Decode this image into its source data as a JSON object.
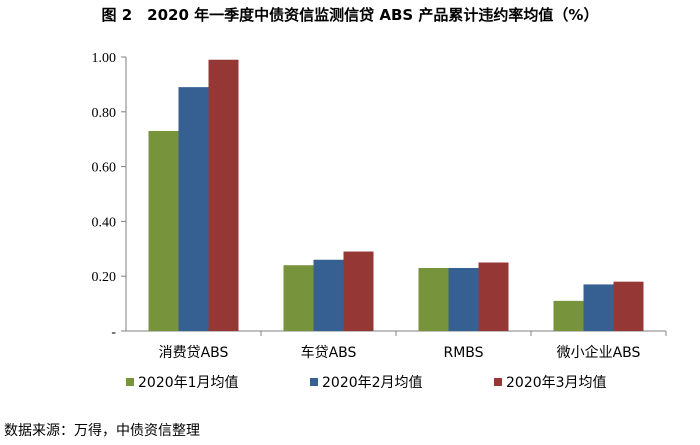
{
  "title": "图 2　2020 年一季度中债资信监测信贷 ABS 产品累计违约率均值（%）",
  "source": "数据来源：万得，中债资信整理",
  "chart_data": {
    "type": "bar",
    "categories": [
      "消费贷ABS",
      "车贷ABS",
      "RMBS",
      "微小企业ABS"
    ],
    "series": [
      {
        "name": "2020年1月均值",
        "values": [
          0.73,
          0.24,
          0.23,
          0.11
        ],
        "color": "#77933C"
      },
      {
        "name": "2020年2月均值",
        "values": [
          0.89,
          0.26,
          0.23,
          0.17
        ],
        "color": "#376092"
      },
      {
        "name": "2020年3月均值",
        "values": [
          0.99,
          0.29,
          0.25,
          0.18
        ],
        "color": "#953735"
      }
    ],
    "ylim": [
      0,
      1.0
    ],
    "yticks": [
      0,
      0.2,
      0.4,
      0.6,
      0.8,
      1.0
    ],
    "ytick_labels": [
      "-",
      "0.20",
      "0.40",
      "0.60",
      "0.80",
      "1.00"
    ],
    "grid": false,
    "legend_position": "bottom"
  }
}
